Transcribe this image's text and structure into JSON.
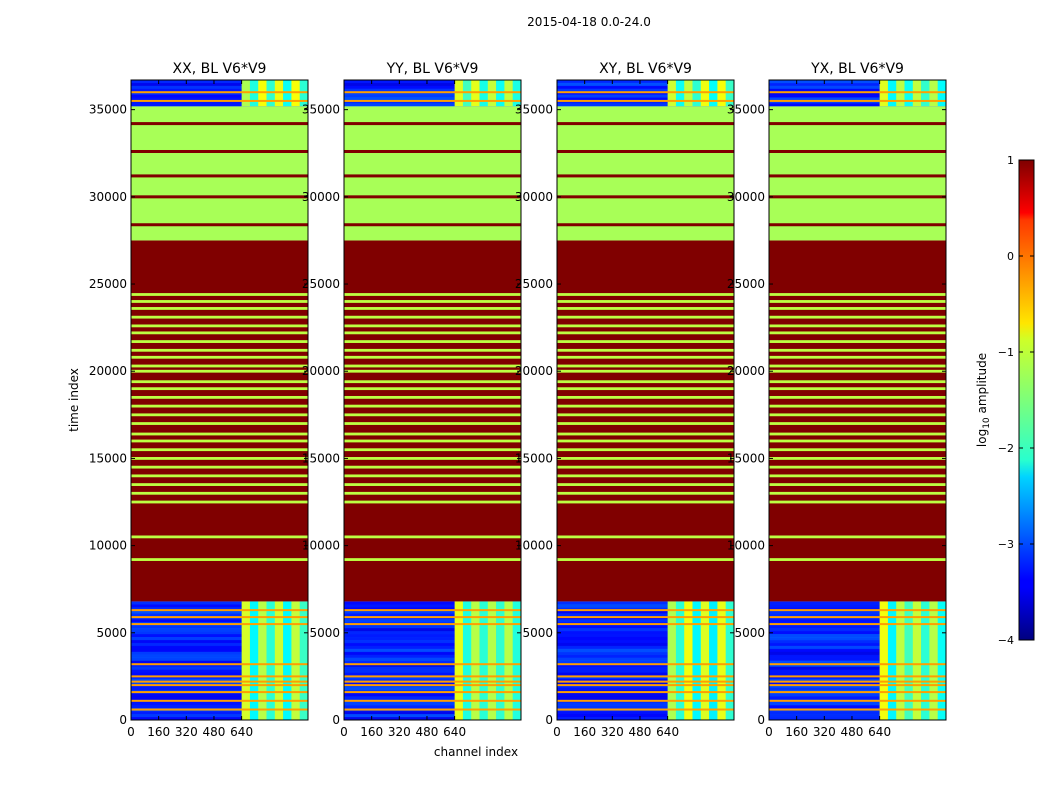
{
  "chart_data": {
    "type": "heatmap",
    "suptitle": "2015-04-18 0.0-24.0",
    "xlabel": "channel index",
    "ylabel": "time index",
    "xlim": [
      0,
      1024
    ],
    "ylim": [
      0,
      36700
    ],
    "x_ticks": [
      0,
      160,
      320,
      480,
      640
    ],
    "y_ticks": [
      0,
      5000,
      10000,
      15000,
      20000,
      25000,
      30000,
      35000
    ],
    "panels": [
      {
        "title": "XX, BL V6*V9",
        "pol": "XX"
      },
      {
        "title": "YY, BL V6*V9",
        "pol": "YY"
      },
      {
        "title": "XY, BL V6*V9",
        "pol": "XY"
      },
      {
        "title": "YX, BL V6*V9",
        "pol": "YX"
      }
    ],
    "colorbar": {
      "label_prefix": "log",
      "label_sub": "10",
      "label_suffix": " amplitude",
      "vmin": -4,
      "vmax": 1,
      "ticks": [
        1,
        0,
        -1,
        -2,
        -3,
        -4
      ],
      "tick_labels": [
        "1",
        "0",
        "−1",
        "−2",
        "−3",
        "−4"
      ],
      "colormap": "jet"
    },
    "time_segments": [
      {
        "from": 0,
        "to": 6800,
        "kind": "noisy",
        "value": -3.3
      },
      {
        "from": 6800,
        "to": 27500,
        "kind": "flagged",
        "value": 1.0
      },
      {
        "from": 27500,
        "to": 35200,
        "kind": "flat",
        "value": -1.3
      },
      {
        "from": 35200,
        "to": 36700,
        "kind": "noisy",
        "value": -3.3
      }
    ],
    "hot_lines_in_flat": [
      28400,
      30000,
      31200,
      32600,
      34200
    ],
    "cool_lines_in_flagged": [
      9200,
      10500,
      12500,
      13000,
      13500,
      14000,
      14500,
      15000,
      15500,
      16000,
      16400,
      17000,
      17500,
      18000,
      18500,
      19000,
      19400,
      20000,
      20300,
      20800,
      21200,
      21700,
      22200,
      22600,
      23100,
      23600,
      24000,
      24400
    ],
    "bright_lines_in_noisy": [
      600,
      1100,
      1600,
      2000,
      2200,
      2500,
      3200,
      5500,
      5900,
      6300,
      35500,
      36000
    ],
    "rfi_band": {
      "x_from": 640,
      "x_to": 1024,
      "pattern_value": -1.2
    }
  }
}
